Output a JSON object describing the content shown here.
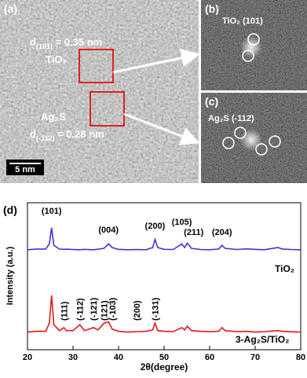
{
  "panels": {
    "a": {
      "label": "(a)",
      "d101": {
        "base": "d",
        "sub": "(101)",
        "rest": " = 0.35 nm"
      },
      "tio2": "TiO₂",
      "ag2s": "Ag₂S",
      "d112": {
        "base": "d",
        "sub": "(-112)",
        "rest": " = 0.28 nm"
      },
      "scale_bar": "5 nm"
    },
    "b": {
      "label": "(b)",
      "caption": "TiO₂ (101)"
    },
    "c": {
      "label": "(c)",
      "caption": "Ag₂S (-112)"
    }
  },
  "chart_data": {
    "type": "line",
    "panel_label": "(d)",
    "xlabel": "2θ(degree)",
    "ylabel": "Intensity (a.u.)",
    "x": [
      20,
      22,
      24,
      24.8,
      25.3,
      25.8,
      27,
      28,
      28.5,
      30,
      31.5,
      32.5,
      34.5,
      35.5,
      36.8,
      37.8,
      38.6,
      40,
      42,
      44,
      46,
      47.5,
      48,
      48.6,
      50,
      52,
      53.9,
      54.5,
      55.1,
      56,
      58,
      60,
      62,
      62.7,
      63.4,
      66,
      68,
      70,
      72,
      75,
      76,
      78,
      80
    ],
    "xlim": [
      20,
      80
    ],
    "xticks": [
      20,
      30,
      40,
      50,
      60,
      70,
      80
    ],
    "ylim": [
      0,
      100
    ],
    "series": [
      {
        "name": "TiO₂",
        "color": "#4b2fd0",
        "values": [
          68,
          68.5,
          68.5,
          72,
          83,
          71,
          68.5,
          68.3,
          68.4,
          68.2,
          68,
          68.3,
          68,
          68.4,
          69,
          72,
          69.5,
          68.3,
          68,
          68.2,
          68,
          69.5,
          75,
          69.5,
          68.3,
          68.2,
          72,
          69.5,
          72.5,
          69,
          68.2,
          68,
          68.5,
          71,
          69,
          68.2,
          68.6,
          68.3,
          68,
          69.5,
          68.5,
          68.2,
          68
        ],
        "peak_labels": [
          "(101)",
          "(004)",
          "(200)",
          "(105)",
          "(211)",
          "(204)"
        ]
      },
      {
        "name": "3-Ag₂S/TiO₂",
        "color": "#e01818",
        "values": [
          12,
          12.5,
          12.5,
          18,
          37,
          17,
          13,
          15,
          13,
          13,
          17,
          13,
          15,
          13.5,
          18,
          19,
          14,
          12.5,
          12,
          12.3,
          12.5,
          13.5,
          18,
          13,
          12.5,
          12.3,
          15,
          13.5,
          16,
          13,
          12.5,
          12.3,
          12.5,
          15,
          13,
          12.3,
          12.5,
          12,
          12.3,
          13,
          12.5,
          12.2,
          12
        ],
        "peak_labels": [
          "(111)",
          "(-112)",
          "(-121)",
          "(121)",
          "(-103)",
          "(200)",
          "(-131)"
        ]
      }
    ]
  }
}
